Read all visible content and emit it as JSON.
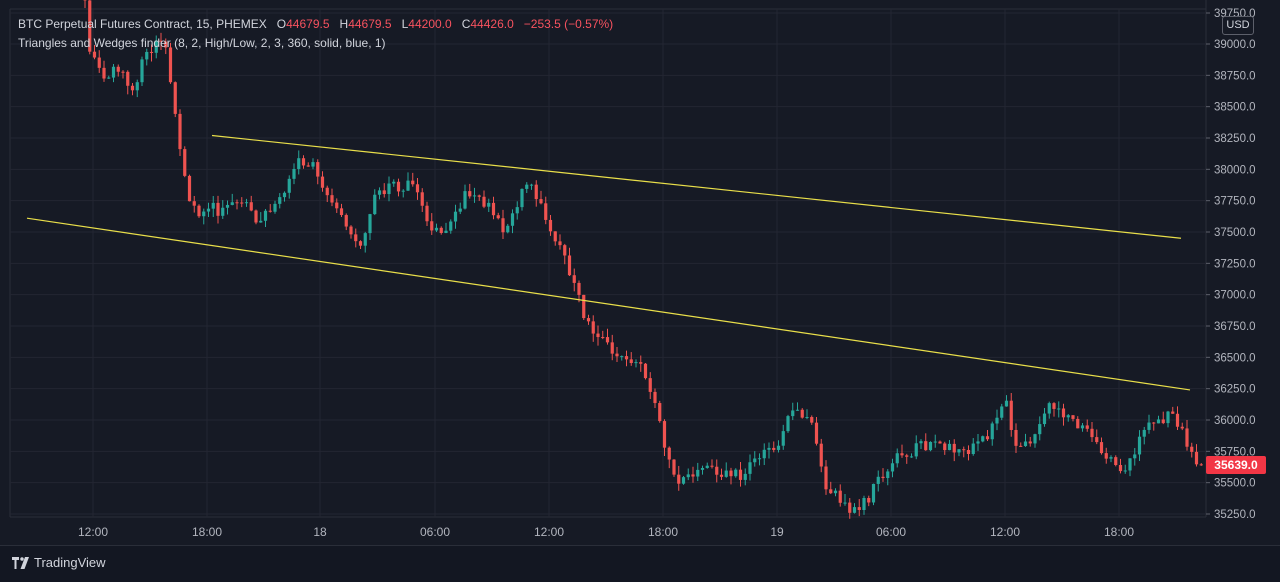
{
  "app": {
    "brand": "TradingView",
    "currency": "USD"
  },
  "legend": {
    "symbol": "BTC Perpetual Futures Contract, 15, PHEMEX",
    "o_label": "O",
    "o_value": "44679.5",
    "h_label": "H",
    "h_value": "44679.5",
    "l_label": "L",
    "l_value": "44200.0",
    "c_label": "C",
    "c_value": "44426.0",
    "change": "−253.5 (−0.57%)",
    "indicator": "Triangles and Wedges finder (8, 2, High/Low, 2, 3, 360, solid, blue, 1)"
  },
  "last_price": "35639.0",
  "colors": {
    "up": "#26a69a",
    "down": "#ef5350",
    "trendline": "#e9df4a",
    "grid": "#232632",
    "last_price_bg": "#f23645"
  },
  "chart_data": {
    "type": "candlestick",
    "ylim": [
      35200,
      39800
    ],
    "y_ticks": [
      "39750.0",
      "39000.0",
      "38750.0",
      "38500.0",
      "38250.0",
      "38000.0",
      "37750.0",
      "37500.0",
      "37250.0",
      "37000.0",
      "36750.0",
      "36500.0",
      "36250.0",
      "36000.0",
      "35750.0",
      "35500.0",
      "35250.0"
    ],
    "x_ticks": [
      {
        "label": "12:00",
        "x": 93
      },
      {
        "label": "18:00",
        "x": 207
      },
      {
        "label": "18",
        "x": 320
      },
      {
        "label": "06:00",
        "x": 435
      },
      {
        "label": "12:00",
        "x": 549
      },
      {
        "label": "18:00",
        "x": 663
      },
      {
        "label": "19",
        "x": 777
      },
      {
        "label": "06:00",
        "x": 891
      },
      {
        "label": "12:00",
        "x": 1005
      },
      {
        "label": "18:00",
        "x": 1119
      }
    ],
    "anchors": [
      {
        "x": 85,
        "p": 39820
      },
      {
        "x": 95,
        "p": 38900
      },
      {
        "x": 110,
        "p": 38750
      },
      {
        "x": 125,
        "p": 38800
      },
      {
        "x": 135,
        "p": 38600
      },
      {
        "x": 150,
        "p": 38900
      },
      {
        "x": 168,
        "p": 39050
      },
      {
        "x": 180,
        "p": 38450
      },
      {
        "x": 190,
        "p": 37900
      },
      {
        "x": 200,
        "p": 37650
      },
      {
        "x": 215,
        "p": 37700
      },
      {
        "x": 230,
        "p": 37650
      },
      {
        "x": 245,
        "p": 37750
      },
      {
        "x": 260,
        "p": 37600
      },
      {
        "x": 280,
        "p": 37700
      },
      {
        "x": 300,
        "p": 38050
      },
      {
        "x": 318,
        "p": 38050
      },
      {
        "x": 333,
        "p": 37800
      },
      {
        "x": 350,
        "p": 37550
      },
      {
        "x": 363,
        "p": 37350
      },
      {
        "x": 380,
        "p": 37800
      },
      {
        "x": 400,
        "p": 37850
      },
      {
        "x": 420,
        "p": 37900
      },
      {
        "x": 435,
        "p": 37550
      },
      {
        "x": 450,
        "p": 37500
      },
      {
        "x": 470,
        "p": 37800
      },
      {
        "x": 490,
        "p": 37750
      },
      {
        "x": 510,
        "p": 37450
      },
      {
        "x": 520,
        "p": 37700
      },
      {
        "x": 535,
        "p": 37900
      },
      {
        "x": 548,
        "p": 37650
      },
      {
        "x": 560,
        "p": 37450
      },
      {
        "x": 575,
        "p": 37150
      },
      {
        "x": 590,
        "p": 36800
      },
      {
        "x": 605,
        "p": 36650
      },
      {
        "x": 620,
        "p": 36500
      },
      {
        "x": 640,
        "p": 36500
      },
      {
        "x": 660,
        "p": 36150
      },
      {
        "x": 670,
        "p": 35700
      },
      {
        "x": 685,
        "p": 35500
      },
      {
        "x": 705,
        "p": 35650
      },
      {
        "x": 725,
        "p": 35600
      },
      {
        "x": 745,
        "p": 35550
      },
      {
        "x": 765,
        "p": 35700
      },
      {
        "x": 785,
        "p": 35850
      },
      {
        "x": 800,
        "p": 36100
      },
      {
        "x": 815,
        "p": 36000
      },
      {
        "x": 830,
        "p": 35500
      },
      {
        "x": 845,
        "p": 35350
      },
      {
        "x": 860,
        "p": 35250
      },
      {
        "x": 875,
        "p": 35400
      },
      {
        "x": 895,
        "p": 35650
      },
      {
        "x": 915,
        "p": 35750
      },
      {
        "x": 940,
        "p": 35850
      },
      {
        "x": 960,
        "p": 35750
      },
      {
        "x": 980,
        "p": 35800
      },
      {
        "x": 1000,
        "p": 35950
      },
      {
        "x": 1010,
        "p": 36150
      },
      {
        "x": 1022,
        "p": 35800
      },
      {
        "x": 1040,
        "p": 35850
      },
      {
        "x": 1055,
        "p": 36150
      },
      {
        "x": 1070,
        "p": 36050
      },
      {
        "x": 1090,
        "p": 35950
      },
      {
        "x": 1105,
        "p": 35800
      },
      {
        "x": 1120,
        "p": 35650
      },
      {
        "x": 1130,
        "p": 35550
      },
      {
        "x": 1145,
        "p": 35900
      },
      {
        "x": 1160,
        "p": 35950
      },
      {
        "x": 1175,
        "p": 36050
      },
      {
        "x": 1190,
        "p": 35850
      },
      {
        "x": 1202,
        "p": 35639
      }
    ],
    "trendlines": [
      {
        "name": "upper",
        "x1": 212,
        "p1": 38270,
        "x2": 1181,
        "p2": 37450
      },
      {
        "name": "lower",
        "x1": 27,
        "p1": 37610,
        "x2": 1190,
        "p2": 36240
      }
    ]
  }
}
